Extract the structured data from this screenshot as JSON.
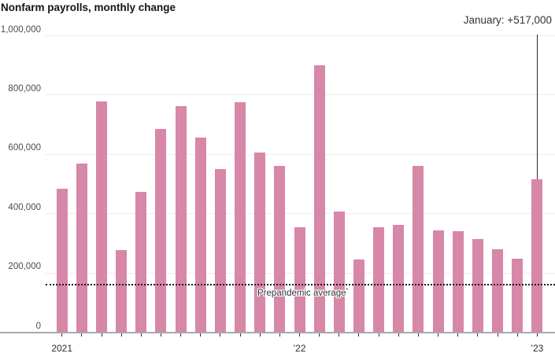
{
  "chart_data": {
    "type": "bar",
    "title": "Nonfarm payrolls, monthly change",
    "bar_color": "#d787a7",
    "categories_note": "25 monthly bars from January 2021 through January 2023",
    "values": [
      485000,
      568000,
      778000,
      277000,
      474000,
      687000,
      762000,
      656000,
      550000,
      777000,
      607000,
      562000,
      355000,
      901000,
      406000,
      246000,
      353000,
      362000,
      561000,
      343000,
      340000,
      314000,
      280000,
      249000,
      517000
    ],
    "x_tick_labels": [
      {
        "index": 0,
        "label": "2021"
      },
      {
        "index": 12,
        "label": "’22"
      },
      {
        "index": 24,
        "label": "’23"
      }
    ],
    "y_tick_values": [
      0,
      200000,
      400000,
      600000,
      800000,
      1000000
    ],
    "y_tick_labels": [
      "0",
      "200,000",
      "400,000",
      "600,000",
      "800,000",
      "1,000,000"
    ],
    "ylim": [
      0,
      1000000
    ],
    "grid": "horizontal",
    "legend": "none",
    "reference_line": {
      "value": 160000,
      "label": "Prepandemic average",
      "marker": "*"
    },
    "annotation": {
      "label": "January: +517,000",
      "bar_index": 24,
      "value": 517000
    }
  }
}
